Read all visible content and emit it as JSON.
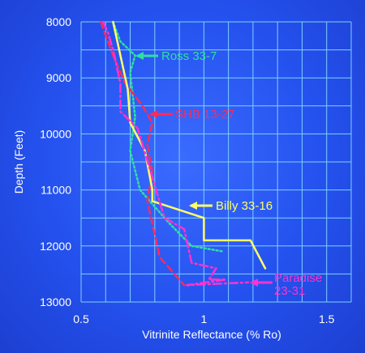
{
  "chart_data": {
    "type": "line",
    "title": "",
    "xlabel": "Vitrinite Reflectance (% Ro)",
    "ylabel": "Depth (Feet)",
    "xlim": [
      0.5,
      1.6
    ],
    "ylim": [
      8000,
      13000
    ],
    "y_inverted": true,
    "grid": true,
    "x_ticks": [
      0.5,
      1,
      1.5
    ],
    "x_tick_labels": [
      "0.5",
      "1",
      "1.5"
    ],
    "y_ticks": [
      8000,
      9000,
      10000,
      11000,
      12000,
      13000
    ],
    "y_tick_labels": [
      "8000",
      "9000",
      "10000",
      "11000",
      "12000",
      "13000"
    ],
    "series": [
      {
        "name": "Ross 33-7",
        "color": "#2ee0a0",
        "style": "dotted",
        "x": [
          0.63,
          0.66,
          0.72,
          0.7,
          0.72,
          0.7,
          0.74,
          0.86,
          0.95,
          1.08
        ],
        "y": [
          8000,
          8350,
          8600,
          8900,
          9700,
          10300,
          11000,
          11600,
          12000,
          12100
        ]
      },
      {
        "name": "SHB 13-27",
        "color": "#ff2b5a",
        "style": "dashed",
        "x": [
          0.58,
          0.63,
          0.68,
          0.75,
          0.79,
          0.77,
          0.79,
          0.77,
          0.82,
          0.92
        ],
        "y": [
          8000,
          8600,
          9100,
          9500,
          9800,
          10200,
          10700,
          11200,
          12200,
          12700
        ]
      },
      {
        "name": "Billy 33-16",
        "color": "#ffff66",
        "style": "solid",
        "x": [
          0.63,
          0.69,
          0.7,
          0.76,
          0.79,
          0.79,
          1.0,
          1.0,
          1.19,
          1.25
        ],
        "y": [
          8000,
          9200,
          9800,
          10300,
          11000,
          11200,
          11500,
          11900,
          11900,
          12400
        ]
      },
      {
        "name": "Paradise 23-31",
        "color": "#ff33cc",
        "style": "dashdot",
        "x": [
          0.59,
          0.61,
          0.63,
          0.66,
          0.66,
          0.73,
          0.84,
          0.92,
          0.95,
          1.05,
          1.02,
          1.09,
          0.93,
          1.18
        ],
        "y": [
          8000,
          8200,
          8500,
          9100,
          9600,
          9900,
          11500,
          11700,
          12300,
          12400,
          12600,
          12600,
          12700,
          12650
        ]
      }
    ]
  },
  "annotations": {
    "ross": "Ross 33-7",
    "shb": "SHB 13-27",
    "billy": "Billy 33-16",
    "paradise_line1": "Paradise",
    "paradise_line2": "23-31"
  }
}
